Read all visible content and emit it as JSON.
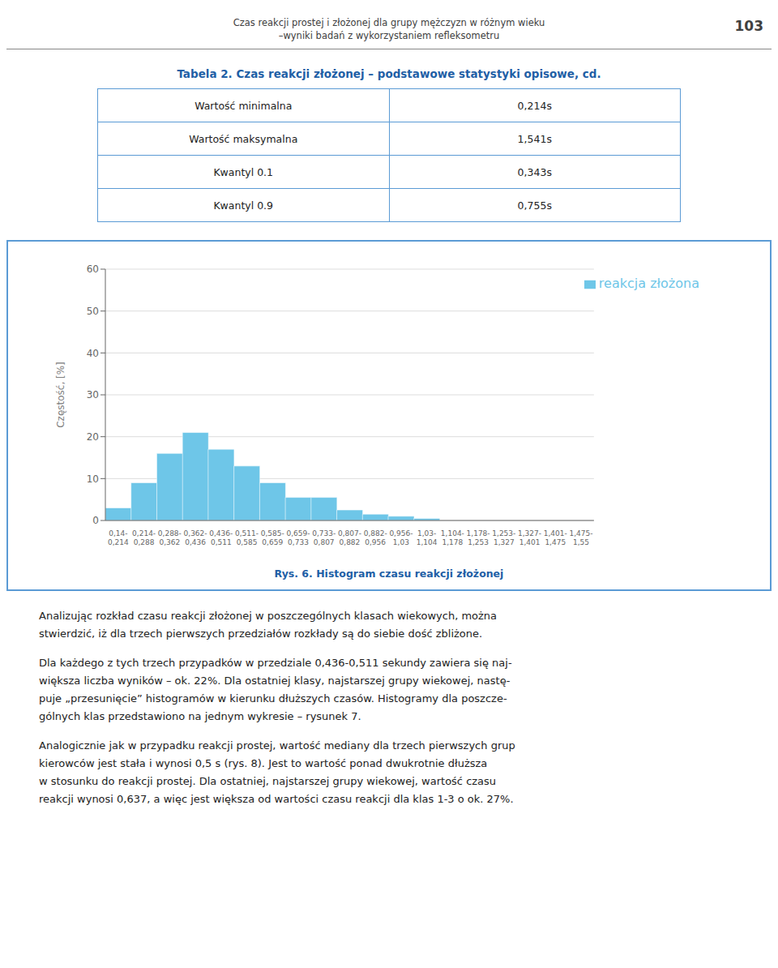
{
  "page_header": [
    "Czas reakcji prostej i złożonej dla grupy mężczyzn w różnym wieku",
    "–wyniki badań z wykorzystaniem refleksometru"
  ],
  "page_number": "103",
  "table_title": "Tabela 2. Czas reakcji złożonej – podstawowe statystyki opisowe, cd.",
  "table_rows": [
    [
      "Wartość minimalna",
      "0,214s"
    ],
    [
      "Wartość maksymalna",
      "1,541s"
    ],
    [
      "Kwantyl 0.1",
      "0,343s"
    ],
    [
      "Kwantyl 0.9",
      "0,755s"
    ]
  ],
  "body_text": [
    [
      "Analizując rozkład czasu reakcji złożonej w poszczególnych klasach wiekowych, można",
      "stwierdzić, iż dla trzech pierwszych przedziałów rozkłady są do siebie dość zbliżone."
    ],
    [
      "Dla każdego z tych trzech przypadków w przedziale 0,436-0,511 sekundy zawiera się naj-",
      "większa liczba wyników – ok. 22%. Dla ostatniej klasy, najstarszej grupy wiekowej, nastę-",
      "puje „przesunięcie” histogramów w kierunku dłuższych czasów. Histogramy dla poszcze-",
      "gólnych klas przedstawiono na jednym wykresie – rysunek 7."
    ],
    [
      "Analogicznie jak w przypadku reakcji prostej, wartość mediany dla trzech pierwszych grup",
      "kierowców jest stała i wynosi 0,5 s (rys. 8). Jest to wartość ponad dwukrotnie dłuższa",
      "w stosunku do reakcji prostej. Dla ostatniej, najstarszej grupy wiekowej, wartość czasu",
      "reakcji wynosi 0,637, a więc jest większa od wartości czasu reakcji dla klas 1-3 o ok. 27%."
    ]
  ],
  "chart_data": {
    "type": "bar",
    "title": "Rys. 6. Histogram czasu reakcji złożonej",
    "y_label": "Częstość, [%]",
    "categories": [
      "0,14-\n0,214",
      "0,214-\n0,288",
      "0,288-\n0,362",
      "0,362-\n0,436",
      "0,436-\n0,511",
      "0,511-\n0,585",
      "0,585-\n0,659",
      "0,659-\n0,733",
      "0,733-\n0,807",
      "0,807-\n0,882",
      "0,882-\n0,956",
      "0,956-\n1,03",
      "1,03-\n1,104",
      "1,104-\n1,178",
      "1,178-\n1,253",
      "1,253-\n1,327",
      "1,327-\n1,401",
      "1,401-\n1,475",
      "1,475-\n1,55"
    ],
    "series": [
      {
        "name": "reakcja złożona",
        "color": "#6EC6E8",
        "values": [
          3,
          9,
          16,
          21,
          17,
          13,
          9,
          5.5,
          5.5,
          2.5,
          1.5,
          1,
          0.5,
          0,
          0,
          0,
          0,
          0,
          0
        ]
      }
    ],
    "ylim": [
      0,
      60
    ],
    "yticks": [
      0,
      10,
      20,
      30,
      40,
      50,
      60
    ],
    "grid": true,
    "legend": "upper right"
  }
}
